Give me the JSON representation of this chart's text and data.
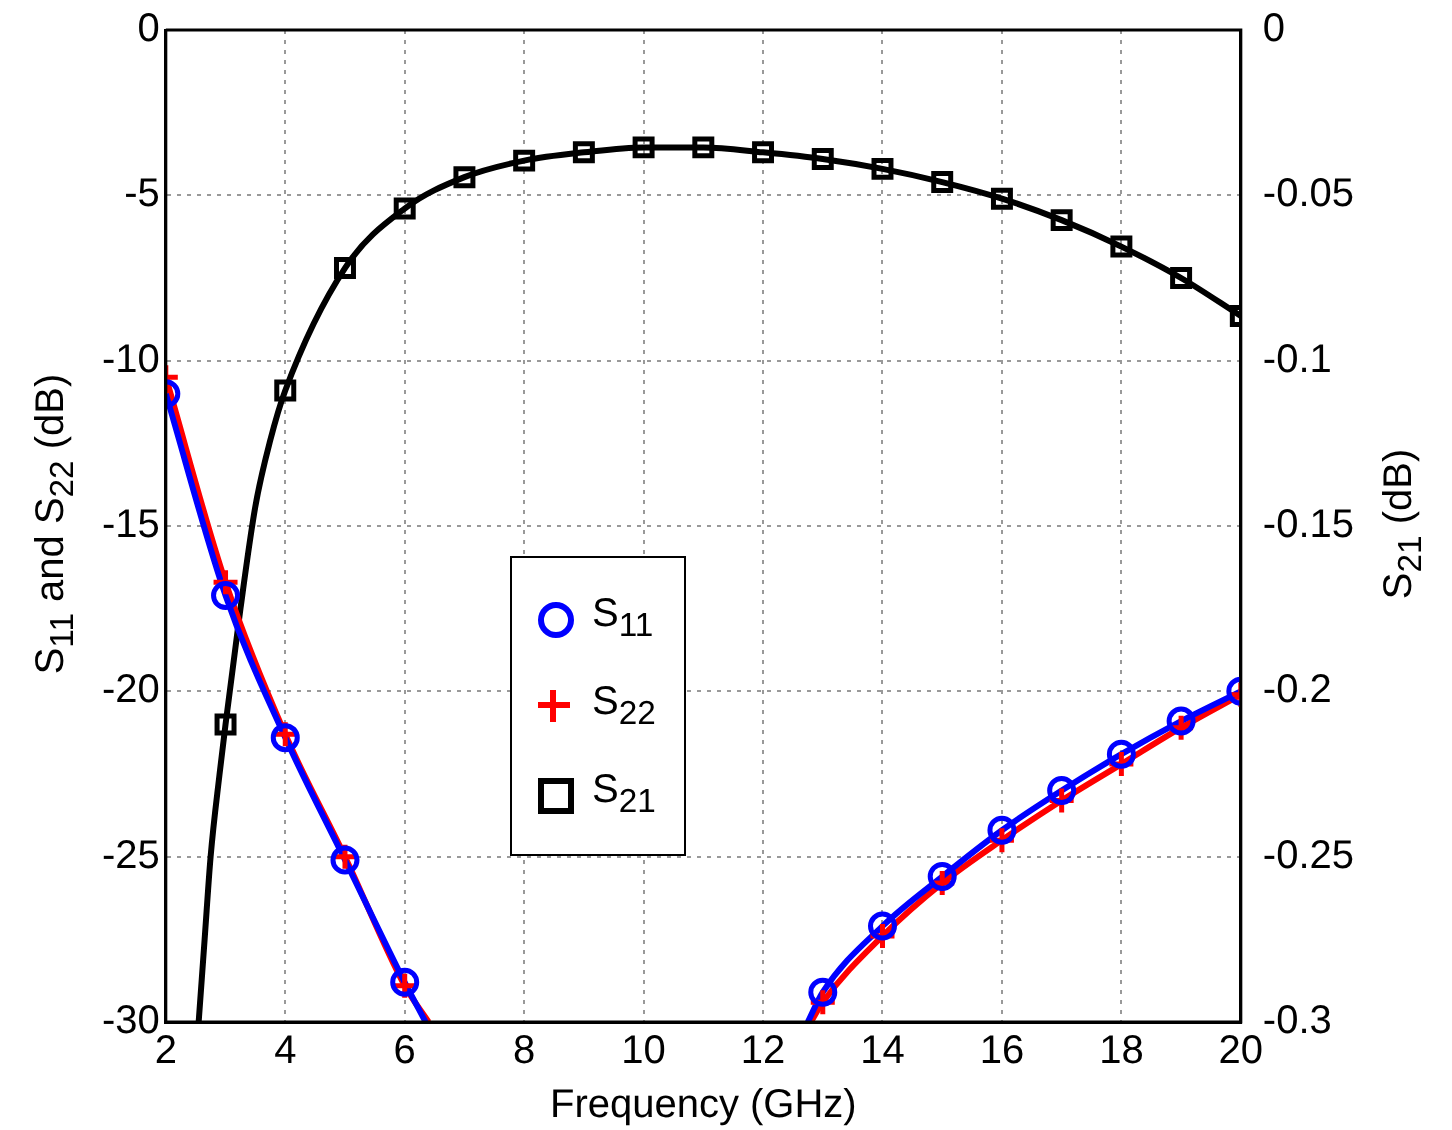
{
  "chart_data": {
    "type": "line",
    "xlabel": "Frequency (GHz)",
    "ylabel": "S$_{11}$ and S$_{22}$ (dB)",
    "y2label": "S$_{21}$ (dB)",
    "xlim": [
      2,
      20
    ],
    "xticks": [
      2,
      4,
      6,
      8,
      10,
      12,
      14,
      16,
      18,
      20
    ],
    "ylim": [
      -30,
      0
    ],
    "yticks": [
      -30,
      -25,
      -20,
      -15,
      -10,
      -5,
      0
    ],
    "y2lim": [
      -0.3,
      0
    ],
    "y2ticks": [
      -0.3,
      -0.25,
      -0.2,
      -0.15,
      -0.1,
      -0.05,
      0
    ],
    "grid": true,
    "legend": "center left",
    "line_style": "solid",
    "series": [
      {
        "color": "#0000ff",
        "marker": "none",
        "x": [
          2,
          3,
          4,
          5,
          6,
          6.35,
          9,
          12.75,
          13,
          14,
          15,
          16,
          17,
          18,
          19,
          20
        ],
        "values": [
          -11.0,
          -17.1,
          -21.4,
          -25.1,
          -28.8,
          -30,
          null,
          -30,
          -29.1,
          -27.1,
          -25.6,
          -24.2,
          -23.0,
          -21.9,
          -20.9,
          -20.0
        ]
      },
      {
        "color": "#ff0000",
        "marker": "none",
        "x": [
          2,
          3,
          4,
          5,
          6,
          6.4,
          9,
          12.8,
          13,
          14,
          15,
          16,
          17,
          18,
          19,
          20
        ],
        "values": [
          -10.5,
          -16.7,
          -21.3,
          -25.0,
          -28.9,
          -30,
          null,
          -30,
          -29.4,
          -27.4,
          -25.8,
          -24.5,
          -23.3,
          -22.2,
          -21.1,
          -20.1
        ]
      },
      {
        "color": "#000000",
        "marker": "none",
        "axis": "y2",
        "x": [
          2.55,
          2.65,
          2.75,
          2.9,
          3,
          3.25,
          3.5,
          3.75,
          4,
          5,
          6,
          7,
          8,
          9,
          10,
          11,
          12,
          13,
          14,
          15,
          16,
          17,
          18,
          19,
          20
        ],
        "values": [
          -0.3,
          -0.275,
          -0.25,
          -0.225,
          -0.21,
          -0.175,
          -0.144,
          -0.124,
          -0.109,
          -0.072,
          -0.054,
          -0.0445,
          -0.0395,
          -0.037,
          -0.0355,
          -0.0355,
          -0.037,
          -0.039,
          -0.042,
          -0.046,
          -0.051,
          -0.0575,
          -0.0655,
          -0.075,
          -0.0865
        ]
      },
      {
        "name": "S$_{11}$",
        "type": "scatter",
        "color": "#0000ff",
        "marker": "circle",
        "x": [
          2,
          3,
          4,
          5,
          6,
          13,
          14,
          15,
          16,
          17,
          18,
          19,
          20
        ],
        "values": [
          -11.0,
          -17.1,
          -21.4,
          -25.1,
          -28.8,
          -29.1,
          -27.1,
          -25.6,
          -24.2,
          -23.0,
          -21.9,
          -20.9,
          -20.0
        ]
      },
      {
        "name": "S$_{22}$",
        "type": "scatter",
        "color": "#ff0000",
        "marker": "cross",
        "x": [
          2,
          3,
          4,
          5,
          6,
          13,
          14,
          15,
          16,
          17,
          18,
          19,
          20
        ],
        "values": [
          -10.5,
          -16.7,
          -21.3,
          -25.0,
          -28.9,
          -29.4,
          -27.4,
          -25.8,
          -24.5,
          -23.3,
          -22.2,
          -21.1,
          -20.1
        ]
      },
      {
        "name": "S$_{21}$",
        "type": "scatter",
        "color": "#000000",
        "marker": "square",
        "axis": "y2",
        "x": [
          3,
          4,
          5,
          6,
          7,
          8,
          9,
          10,
          11,
          12,
          13,
          14,
          15,
          16,
          17,
          18,
          19,
          20
        ],
        "values": [
          -0.21,
          -0.109,
          -0.072,
          -0.054,
          -0.0445,
          -0.0395,
          -0.037,
          -0.0355,
          -0.0355,
          -0.037,
          -0.039,
          -0.042,
          -0.046,
          -0.051,
          -0.0575,
          -0.0655,
          -0.075,
          -0.0865
        ]
      }
    ]
  }
}
